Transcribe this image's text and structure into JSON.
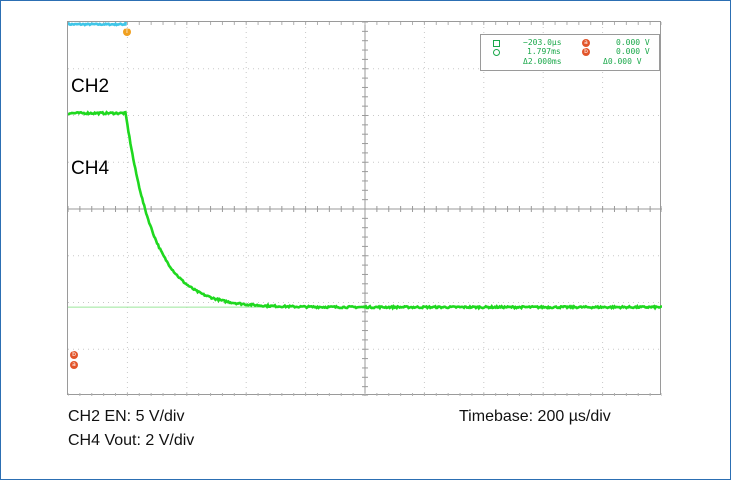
{
  "chart_data": {
    "type": "line",
    "grid": true,
    "divisions": {
      "x": 10,
      "y": 8
    },
    "series": [
      {
        "name": "CH2",
        "color": "#3fc6e8",
        "description_points_div": {
          "baseline_div": 3.95,
          "high_div": 4.4,
          "step_time_div": 0.97
        }
      },
      {
        "name": "CH4",
        "color": "#1fd81f",
        "description_points_div": {
          "initial_div": 2.05,
          "final_div": -2.1,
          "start_time_div": 0.97,
          "tau_div": 0.48
        }
      }
    ],
    "cursor_readout": {
      "t1": "−203.0µs",
      "v1": "0.000 V",
      "t2": "1.797ms",
      "v2": "0.000 V",
      "dt": "Δ2.000ms",
      "dv": "Δ0.000 V"
    }
  },
  "labels": {
    "ch2": "CH2",
    "ch4": "CH4",
    "ch2_scale": "CH2 EN: 5 V/div",
    "ch4_scale": "CH4 Vout: 2 V/div",
    "timebase": "Timebase: 200 µs/div"
  },
  "markers": {
    "trigger": "T",
    "ref_b": "b",
    "ref_a": "a"
  }
}
